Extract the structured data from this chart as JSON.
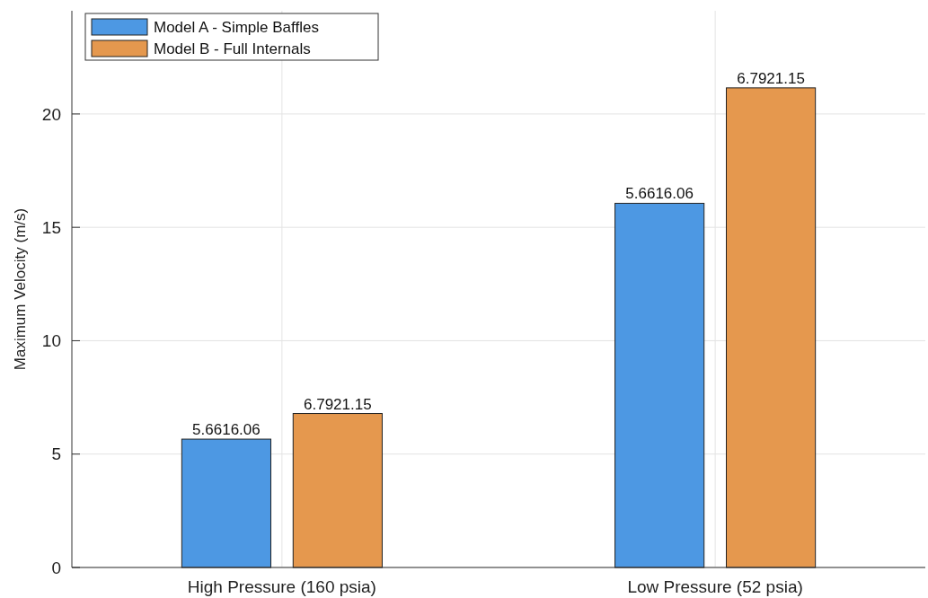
{
  "chart_data": {
    "type": "bar",
    "ylabel": "Maximum Velocity (m/s)",
    "categories": [
      "High Pressure (160 psia)",
      "Low Pressure (52 psia)"
    ],
    "series": [
      {
        "name": "Model A - Simple Baffles",
        "color": "#4d98e3",
        "values": [
          5.66,
          16.06
        ],
        "value_labels": [
          "5.6616.06",
          "5.6616.06"
        ]
      },
      {
        "name": "Model B - Full Internals",
        "color": "#e5984e",
        "values": [
          6.79,
          21.15
        ],
        "value_labels": [
          "6.7921.15",
          "6.7921.15"
        ]
      }
    ],
    "ylim": [
      0,
      24.55
    ],
    "yticks": [
      0,
      5,
      10,
      15,
      20
    ],
    "grid": true,
    "legend": "top left"
  }
}
